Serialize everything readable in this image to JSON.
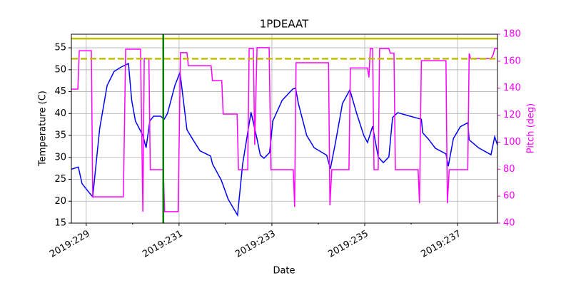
{
  "chart_data": {
    "type": "line",
    "title": "1PDEAAT",
    "xlabel": "Date",
    "ylabel": "Temperature (C)",
    "y2label": "Pitch (deg)",
    "xlim": [
      228.68,
      237.86
    ],
    "ylim": [
      15,
      58.1
    ],
    "y2lim": [
      40,
      180
    ],
    "xticks": [
      {
        "value": 229,
        "label": "2019:229"
      },
      {
        "value": 231,
        "label": "2019:231"
      },
      {
        "value": 233,
        "label": "2019:233"
      },
      {
        "value": 235,
        "label": "2019:235"
      },
      {
        "value": 237,
        "label": "2019:237"
      }
    ],
    "xminorticks": [
      230,
      232,
      234,
      236
    ],
    "yticks": [
      15,
      20,
      25,
      30,
      35,
      40,
      45,
      50,
      55
    ],
    "y2ticks": [
      40,
      60,
      80,
      100,
      120,
      140,
      160,
      180
    ],
    "grid": true,
    "y2color": "#ff00ff",
    "hlines": [
      {
        "value": 57.1,
        "color": "#bfbf00",
        "style": "solid"
      },
      {
        "value": 52.5,
        "color": "#bfbf00",
        "style": "dashed"
      }
    ],
    "vlines": [
      {
        "value": 230.66,
        "color": "#008000"
      }
    ],
    "series": [
      {
        "name": "Temperature",
        "color": "#0000ff",
        "axis": "y",
        "x": [
          228.68,
          228.83,
          228.91,
          229.06,
          229.14,
          229.29,
          229.45,
          229.6,
          229.75,
          229.91,
          229.98,
          230.06,
          230.22,
          230.29,
          230.37,
          230.45,
          230.6,
          230.68,
          230.75,
          230.91,
          231.02,
          231.17,
          231.29,
          231.45,
          231.68,
          231.72,
          231.91,
          232.06,
          232.26,
          232.37,
          232.55,
          232.68,
          232.75,
          232.83,
          232.95,
          233.02,
          233.22,
          233.45,
          233.51,
          233.57,
          233.75,
          233.91,
          234.18,
          234.26,
          234.37,
          234.52,
          234.68,
          234.83,
          234.98,
          235.06,
          235.17,
          235.29,
          235.4,
          235.52,
          235.6,
          235.71,
          235.91,
          236.22,
          236.25,
          236.37,
          236.52,
          236.75,
          236.8,
          236.91,
          237.06,
          237.22,
          237.25,
          237.45,
          237.72,
          237.8,
          237.86
        ],
        "values": [
          27.3,
          27.8,
          24.0,
          22.0,
          21.0,
          36.6,
          46.4,
          49.6,
          50.6,
          51.4,
          43.0,
          38.3,
          35.0,
          32.2,
          38.3,
          39.4,
          39.4,
          38.7,
          40.0,
          46.4,
          49.4,
          36.3,
          34.2,
          31.5,
          30.3,
          28.5,
          24.8,
          20.4,
          16.8,
          28.5,
          40.3,
          34.2,
          30.5,
          29.8,
          31.1,
          38.3,
          43.0,
          45.6,
          45.8,
          42.3,
          35.0,
          32.2,
          30.5,
          27.4,
          33.4,
          42.3,
          45.4,
          39.9,
          35.0,
          33.4,
          37.1,
          30.1,
          28.8,
          30.1,
          39.1,
          40.2,
          39.6,
          38.7,
          35.6,
          34.2,
          32.1,
          30.8,
          28.0,
          34.3,
          37.0,
          37.9,
          34.0,
          32.2,
          30.6,
          34.7,
          32.8
        ]
      },
      {
        "name": "Pitch",
        "color": "#ff00ff",
        "axis": "y2",
        "x": [
          228.68,
          228.82,
          228.85,
          229.11,
          229.14,
          229.8,
          229.85,
          230.17,
          230.22,
          230.25,
          230.35,
          230.38,
          230.66,
          230.69,
          230.98,
          231.03,
          231.17,
          231.2,
          231.69,
          231.72,
          231.92,
          231.95,
          232.25,
          232.28,
          232.48,
          232.51,
          232.6,
          232.63,
          232.68,
          232.94,
          232.98,
          233.46,
          233.49,
          233.52,
          234.22,
          234.25,
          234.29,
          234.66,
          234.69,
          235.06,
          235.09,
          235.12,
          235.17,
          235.2,
          235.29,
          235.32,
          235.52,
          235.55,
          235.63,
          235.66,
          236.15,
          236.18,
          236.22,
          236.75,
          236.78,
          236.82,
          237.22,
          237.25,
          237.28,
          237.72,
          237.77,
          237.8,
          237.86
        ],
        "values": [
          139.3,
          139.3,
          167.8,
          167.8,
          59.5,
          59.5,
          168.9,
          168.9,
          48.5,
          162,
          162,
          79.6,
          79.6,
          48.5,
          48.5,
          166.3,
          166.3,
          156.7,
          156.7,
          145.6,
          145.6,
          120.8,
          120.8,
          79.6,
          79.6,
          169.4,
          169.4,
          98,
          170,
          170,
          79.6,
          79.6,
          52,
          158.9,
          158.9,
          53.2,
          79.6,
          79.6,
          155,
          155,
          148,
          169.4,
          169.4,
          79.6,
          79.6,
          169.4,
          169.4,
          166,
          166,
          79.6,
          79.6,
          54.7,
          160.4,
          160.4,
          54.7,
          79.6,
          79.6,
          165.7,
          162,
          162,
          165,
          169.4,
          169.4
        ]
      }
    ]
  }
}
